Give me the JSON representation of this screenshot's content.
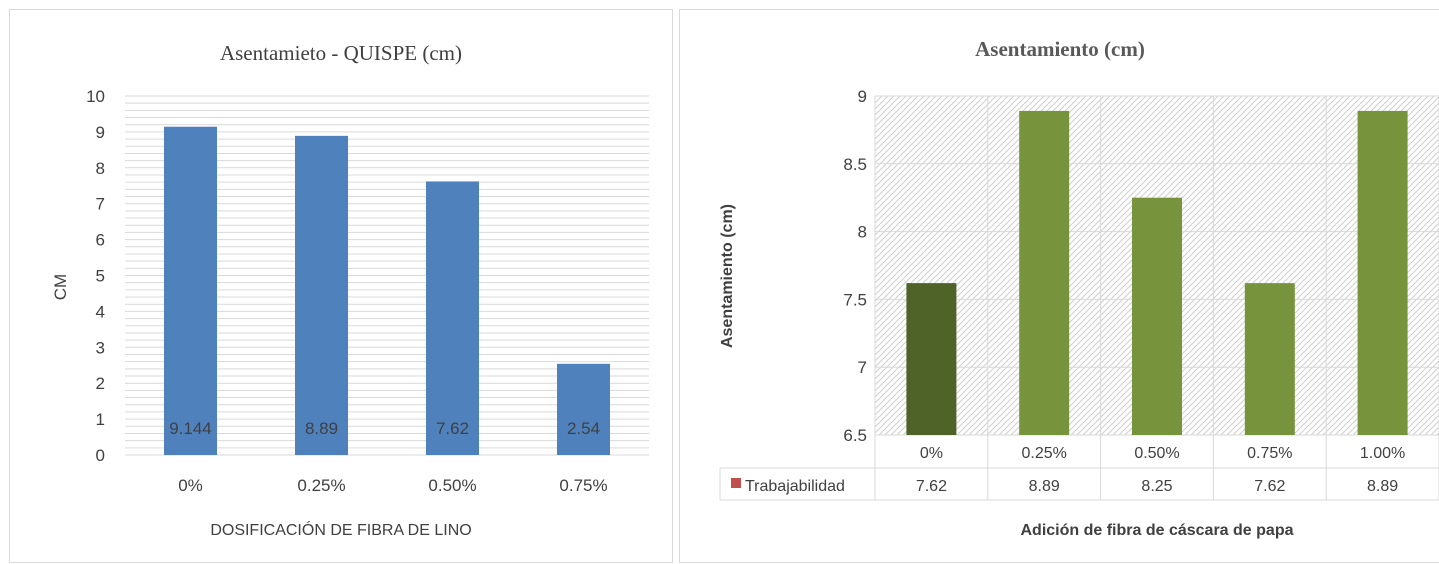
{
  "colors": {
    "left_bar": "#4f81bd",
    "right_bar": "#77933c",
    "right_bar_first": "#4f6228",
    "legend_marker": "#c0504d",
    "grid": "#d9d9d9",
    "text": "#404040"
  },
  "chart_data": [
    {
      "type": "bar",
      "title": "Asentamieto - QUISPE (cm)",
      "xlabel": "DOSIFICACIÓN DE FIBRA DE LINO",
      "ylabel": "CM",
      "categories": [
        "0%",
        "0.25%",
        "0.50%",
        "0.75%"
      ],
      "values": [
        9.144,
        8.89,
        7.62,
        2.54
      ],
      "data_labels": [
        "9.144",
        "8.89",
        "7.62",
        "2.54"
      ],
      "ylim": [
        0,
        10
      ],
      "yticks": [
        "0",
        "1",
        "2",
        "3",
        "4",
        "5",
        "6",
        "7",
        "8",
        "9",
        "10"
      ],
      "grid": true
    },
    {
      "type": "bar",
      "title": "Asentamiento (cm)",
      "xlabel": "Adición de fibra de cáscara de papa",
      "ylabel": "Asentamiento (cm)",
      "categories": [
        "0%",
        "0.25%",
        "0.50%",
        "0.75%",
        "1.00%"
      ],
      "series": [
        {
          "name": "Trabajabilidad",
          "values": [
            7.62,
            8.89,
            8.25,
            7.62,
            8.89
          ]
        }
      ],
      "table_values": [
        "7.62",
        "8.89",
        "8.25",
        "7.62",
        "8.89"
      ],
      "ylim": [
        6.5,
        9
      ],
      "yticks": [
        "6.5",
        "7",
        "7.5",
        "8",
        "8.5",
        "9"
      ],
      "grid": true,
      "data_table": true
    }
  ]
}
